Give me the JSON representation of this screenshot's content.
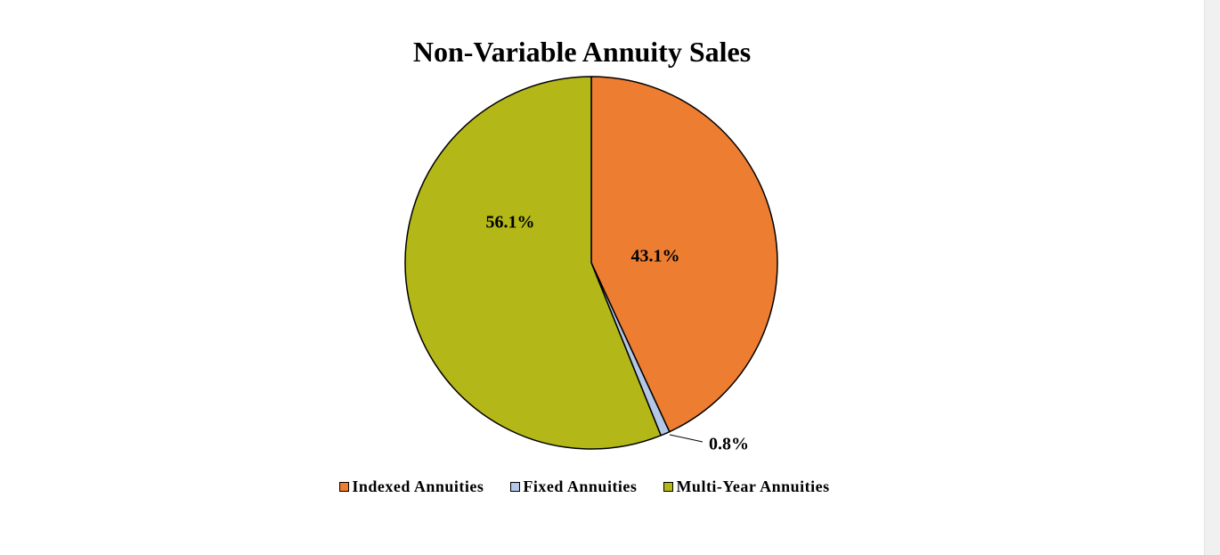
{
  "chart_data": {
    "type": "pie",
    "title": "Non-Variable Annuity Sales",
    "slices": [
      {
        "name": "Indexed Annuities",
        "value": 43.1,
        "label": "43.1%",
        "color": "#ED7D31"
      },
      {
        "name": "Fixed Annuities",
        "value": 0.8,
        "label": "0.8%",
        "color": "#B4C7E7"
      },
      {
        "name": "Multi-Year Annuities",
        "value": 56.1,
        "label": "56.1%",
        "color": "#B3B718"
      }
    ],
    "start_angle": "12 o'clock",
    "direction": "clockwise",
    "legend_position": "bottom",
    "slice_border_color": "#000000"
  }
}
